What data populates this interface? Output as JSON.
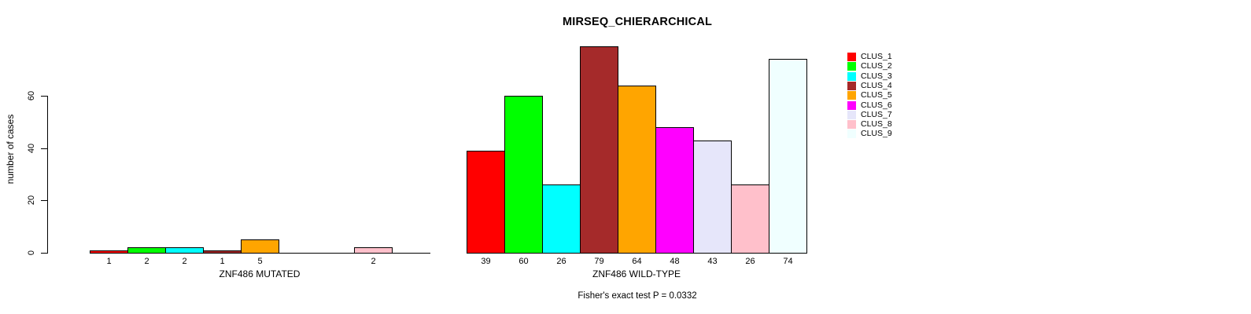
{
  "figure": {
    "title": "MIRSEQ_CHIERARCHICAL",
    "y_axis_label": "number of cases",
    "footer": "Fisher's exact test P = 0.0332"
  },
  "legend": {
    "entries": [
      {
        "label": "CLUS_1",
        "color": "#FF0000"
      },
      {
        "label": "CLUS_2",
        "color": "#00FF00"
      },
      {
        "label": "CLUS_3",
        "color": "#00FFFF"
      },
      {
        "label": "CLUS_4",
        "color": "#A52A2A"
      },
      {
        "label": "CLUS_5",
        "color": "#FFA500"
      },
      {
        "label": "CLUS_6",
        "color": "#FF00FF"
      },
      {
        "label": "CLUS_7",
        "color": "#E6E6FA"
      },
      {
        "label": "CLUS_8",
        "color": "#FFC0CB"
      },
      {
        "label": "CLUS_9",
        "color": "#F0FFFF"
      }
    ]
  },
  "chart_data": [
    {
      "type": "bar",
      "panel": "mutated",
      "title": "MIRSEQ_CHIERARCHICAL",
      "xlabel": "ZNF486 MUTATED",
      "ylabel": "number of cases",
      "categories": [
        "CLUS_1",
        "CLUS_2",
        "CLUS_3",
        "CLUS_4",
        "CLUS_5",
        "CLUS_6",
        "CLUS_7",
        "CLUS_8",
        "CLUS_9"
      ],
      "values": [
        1,
        2,
        2,
        1,
        5,
        0,
        0,
        2,
        0
      ],
      "bar_labels": [
        "1",
        "2",
        "2",
        "1",
        "5",
        "",
        "",
        "2",
        ""
      ],
      "colors": [
        "#FF0000",
        "#00FF00",
        "#00FFFF",
        "#A52A2A",
        "#FFA500",
        "#FF00FF",
        "#E6E6FA",
        "#FFC0CB",
        "#F0FFFF"
      ],
      "ylim": [
        0,
        80
      ],
      "yticks": [
        0,
        20,
        40,
        60
      ],
      "grid": false,
      "legend_position": "right",
      "annotation": "Fisher's exact test P = 0.0332"
    },
    {
      "type": "bar",
      "panel": "wild-type",
      "title": "MIRSEQ_CHIERARCHICAL",
      "xlabel": "ZNF486 WILD-TYPE",
      "ylabel": "",
      "categories": [
        "CLUS_1",
        "CLUS_2",
        "CLUS_3",
        "CLUS_4",
        "CLUS_5",
        "CLUS_6",
        "CLUS_7",
        "CLUS_8",
        "CLUS_9"
      ],
      "values": [
        39,
        60,
        26,
        79,
        64,
        48,
        43,
        26,
        74
      ],
      "bar_labels": [
        "39",
        "60",
        "26",
        "79",
        "64",
        "48",
        "43",
        "26",
        "74"
      ],
      "colors": [
        "#FF0000",
        "#00FF00",
        "#00FFFF",
        "#A52A2A",
        "#FFA500",
        "#FF00FF",
        "#E6E6FA",
        "#FFC0CB",
        "#F0FFFF"
      ],
      "ylim": [
        0,
        80
      ],
      "yticks": [],
      "grid": false,
      "legend_position": "right",
      "annotation": "Fisher's exact test P = 0.0332"
    }
  ]
}
